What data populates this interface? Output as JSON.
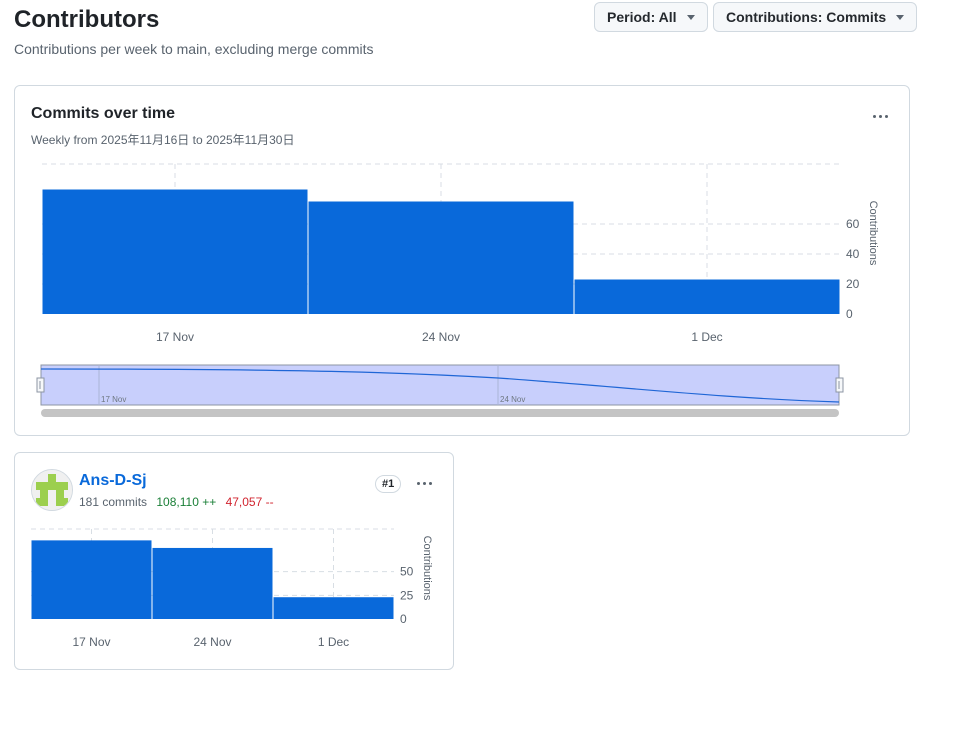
{
  "header": {
    "title": "Contributors",
    "subtitle": "Contributions per week to main, excluding merge commits",
    "period_button": "Period: All",
    "contributions_button": "Contributions: Commits"
  },
  "overview": {
    "title": "Commits over time",
    "subtitle": "Weekly from 2025年11月16日 to 2025年11月30日",
    "more_icon": "kebab-horizontal-icon",
    "brush_labels": [
      "17 Nov",
      "24 Nov"
    ]
  },
  "contributor": {
    "name": "Ans-D-Sj",
    "commits_text": "181 commits",
    "additions_text": "108,110 ++",
    "deletions_text": "47,057 --",
    "rank": "#1",
    "avatar_icon": "identicon-icon",
    "more_icon": "kebab-horizontal-icon"
  },
  "colors": {
    "bar": "#0969da",
    "brush_fill": "#c8cffc",
    "accent_link": "#0969da",
    "add": "#1a7f37",
    "del": "#d1242f"
  },
  "chart_data": [
    {
      "type": "bar",
      "categories": [
        "17 Nov",
        "24 Nov",
        "1 Dec"
      ],
      "values": [
        83,
        75,
        23
      ],
      "ylabel": "Contributions",
      "yticks": [
        0,
        20,
        40,
        60
      ],
      "ylim": [
        0,
        100
      ],
      "grid": true
    },
    {
      "type": "bar",
      "categories": [
        "17 Nov",
        "24 Nov",
        "1 Dec"
      ],
      "values": [
        83,
        75,
        23
      ],
      "ylabel": "Contributions",
      "yticks": [
        0,
        25,
        50
      ],
      "ylim": [
        0,
        95
      ],
      "grid": true
    }
  ]
}
